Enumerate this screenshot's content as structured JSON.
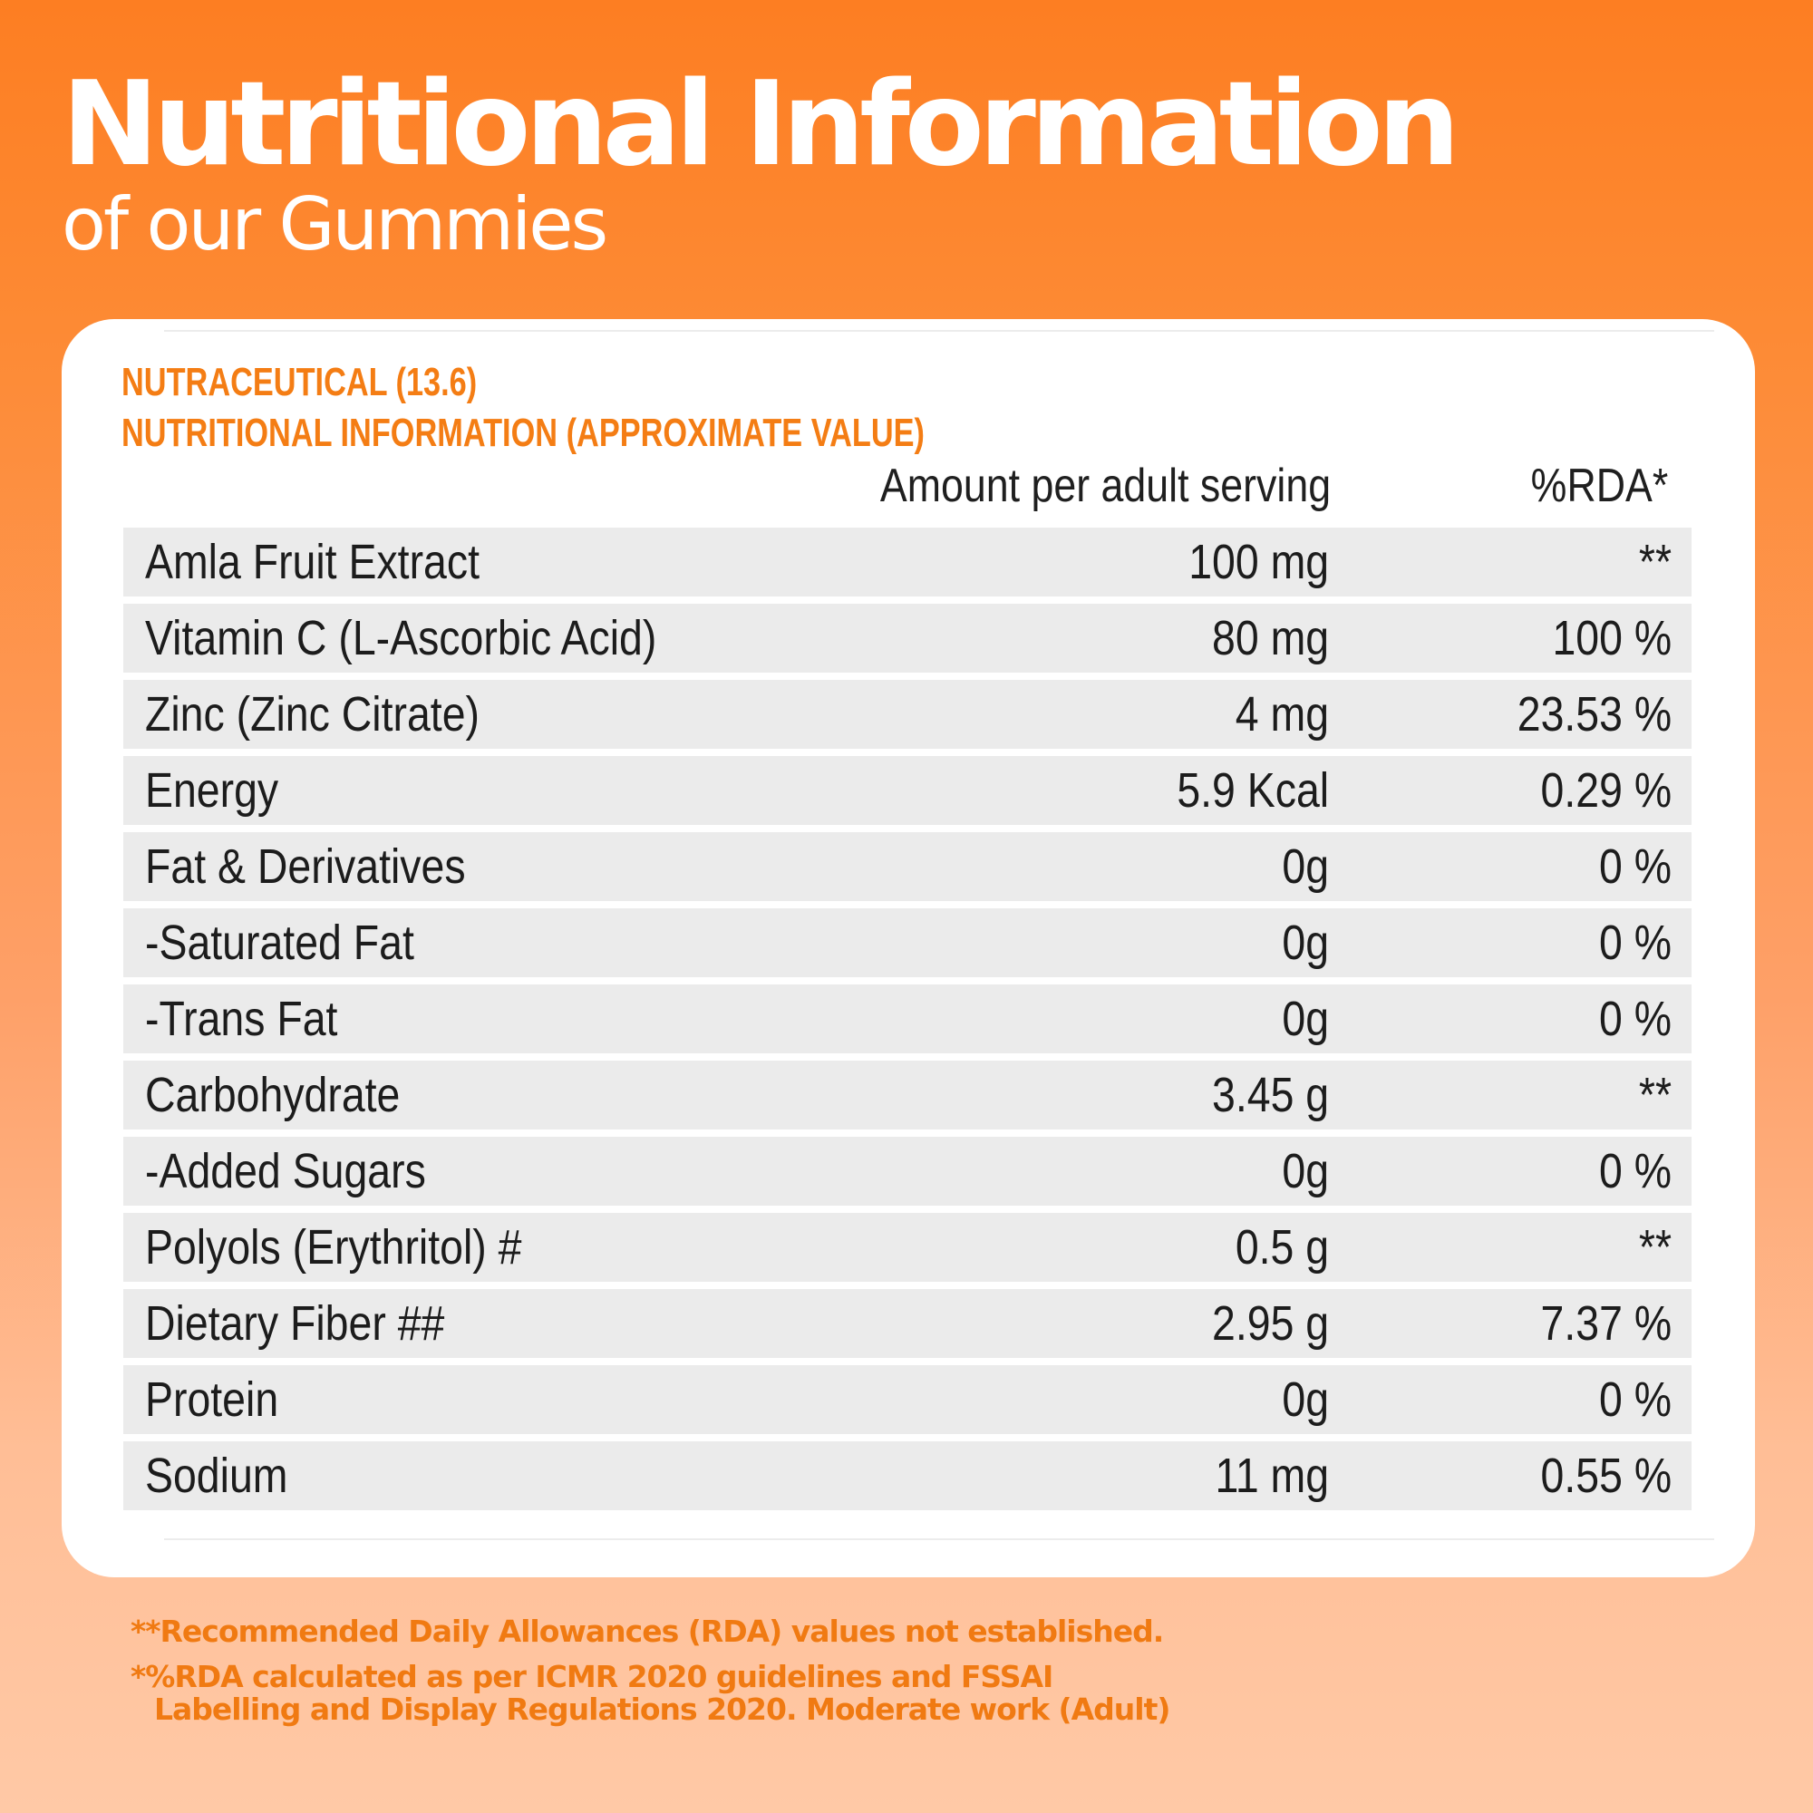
{
  "header": {
    "title": "Nutritional Information",
    "subtitle": "of our Gummies"
  },
  "label": {
    "heading_line1": "NUTRACEUTICAL (13.6)",
    "heading_line2": "NUTRITIONAL INFORMATION (APPROXIMATE VALUE)",
    "columns": {
      "amount": "Amount per adult serving",
      "rda": "%RDA*"
    },
    "rows": [
      {
        "name": "Amla Fruit Extract",
        "amount": "100 mg",
        "rda": "**"
      },
      {
        "name": "Vitamin C (L-Ascorbic Acid)",
        "amount": "80 mg",
        "rda": "100 %"
      },
      {
        "name": "Zinc (Zinc Citrate)",
        "amount": "4 mg",
        "rda": "23.53 %"
      },
      {
        "name": "Energy",
        "amount": "5.9 Kcal",
        "rda": "0.29 %"
      },
      {
        "name": "Fat & Derivatives",
        "amount": "0g",
        "rda": "0 %"
      },
      {
        "name": "-Saturated Fat",
        "amount": "0g",
        "rda": "0 %"
      },
      {
        "name": "-Trans Fat",
        "amount": "0g",
        "rda": "0 %"
      },
      {
        "name": "Carbohydrate",
        "amount": "3.45 g",
        "rda": "**"
      },
      {
        "name": "-Added Sugars",
        "amount": "0g",
        "rda": "0 %"
      },
      {
        "name": "Polyols (Erythritol) #",
        "amount": "0.5 g",
        "rda": "**"
      },
      {
        "name": "Dietary Fiber ##",
        "amount": "2.95 g",
        "rda": "7.37 %"
      },
      {
        "name": "Protein",
        "amount": "0g",
        "rda": "0 %"
      },
      {
        "name": "Sodium",
        "amount": "11 mg",
        "rda": "0.55 %"
      }
    ]
  },
  "footnotes": {
    "note1": "**Recommended Daily Allowances (RDA) values not established.",
    "note2_line1": "*%RDA calculated as per ICMR 2020 guidelines and FSSAI",
    "note2_line2": "Labelling and Display Regulations 2020. Moderate work (Adult)"
  },
  "colors": {
    "background_top": "#fd7e22",
    "background_bottom": "#ffc9a6",
    "accent": "#f47d14",
    "row_fill": "#ebebeb"
  }
}
